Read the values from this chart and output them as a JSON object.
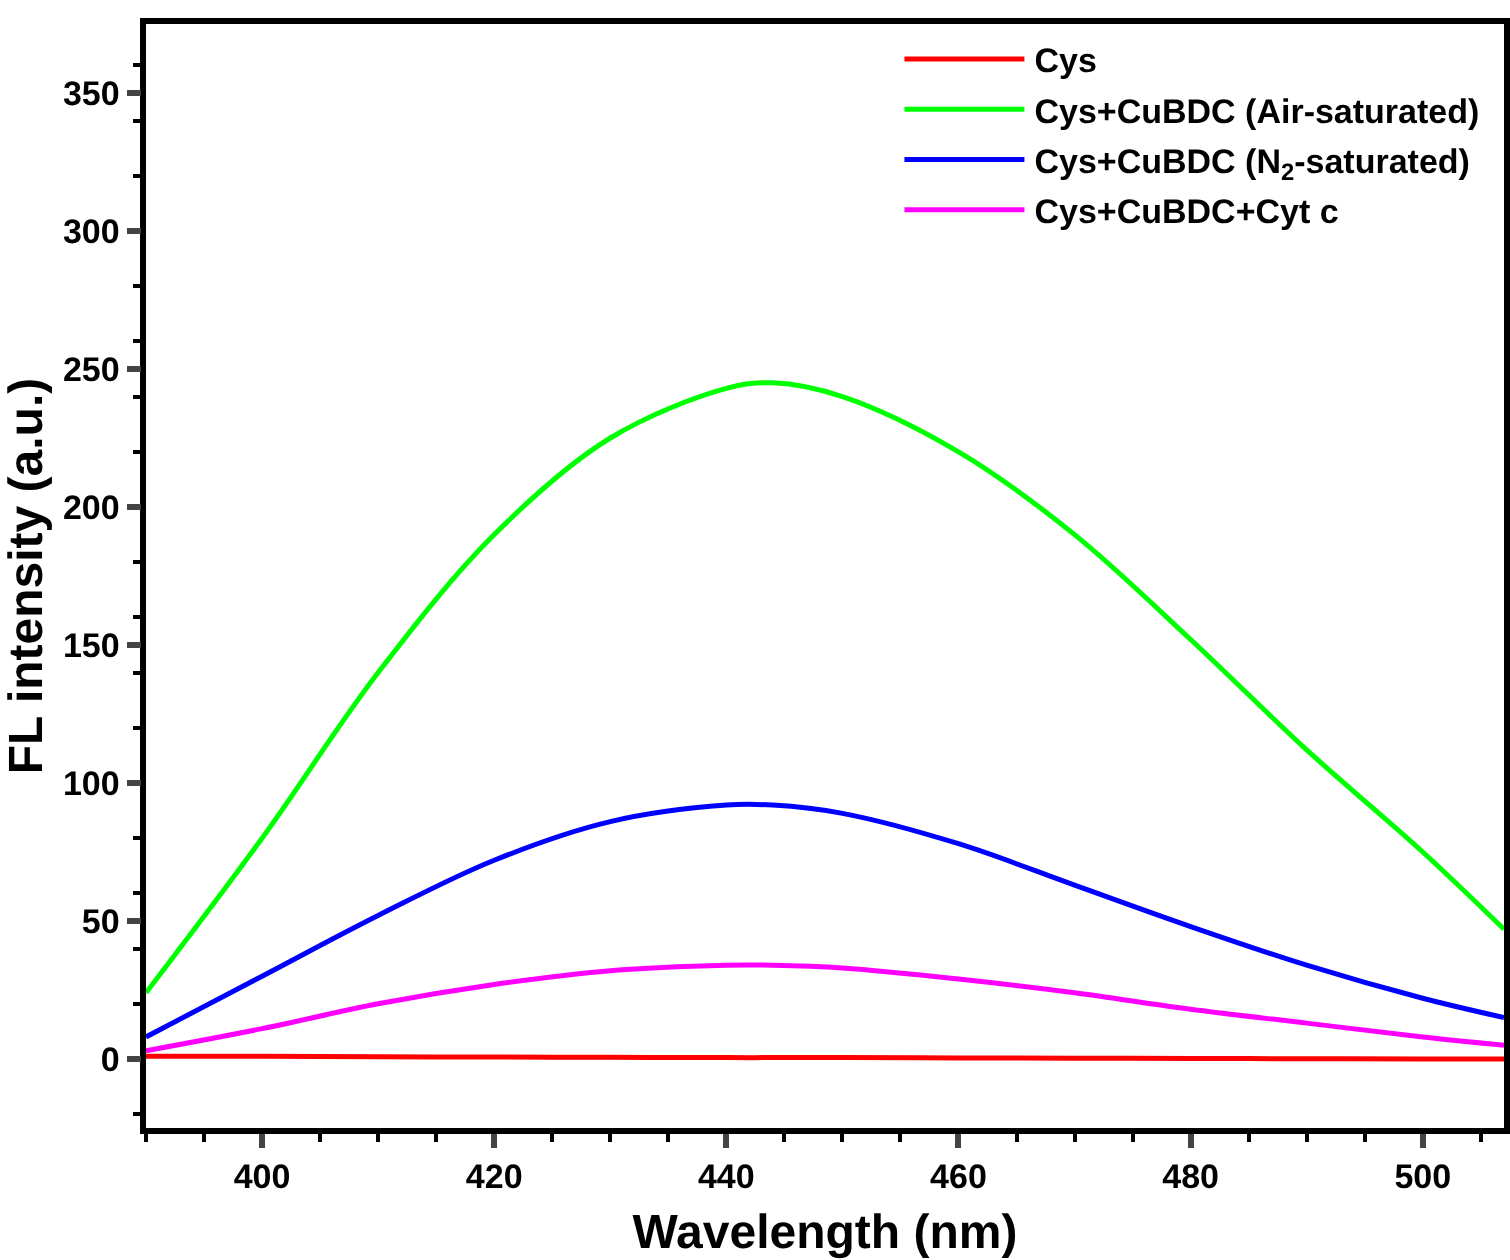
{
  "chart_data": {
    "type": "line",
    "xlabel": "Wavelength (nm)",
    "ylabel": "FL intensity (a.u.)",
    "xlim": [
      390,
      507
    ],
    "xticks": [
      400,
      420,
      440,
      460,
      480,
      500
    ],
    "ylim": [
      -25,
      375
    ],
    "yticks": [
      0,
      50,
      100,
      150,
      200,
      250,
      300,
      350
    ],
    "legend": "top right",
    "marker": "none",
    "line_style": "solid",
    "x": [
      390,
      400,
      410,
      420,
      430,
      440,
      444,
      450,
      460,
      470,
      480,
      490,
      500,
      507
    ],
    "series": [
      {
        "name": "Cys",
        "color": "#ff0000",
        "values": [
          1,
          1,
          0.8,
          0.7,
          0.6,
          0.5,
          0.5,
          0.5,
          0.4,
          0.3,
          0.2,
          0.1,
          0,
          0
        ]
      },
      {
        "name": "Cys+CuBDC (Air-saturated)",
        "color": "#00ff00",
        "values": [
          24,
          80,
          140,
          190,
          225,
          243,
          245,
          240,
          220,
          190,
          152,
          112,
          75,
          47
        ]
      },
      {
        "name": "Cys+CuBDC (N$_{2}$-saturated)",
        "color": "#0000ff",
        "values": [
          8,
          30,
          52,
          72,
          86,
          92,
          92,
          89,
          78,
          63,
          48,
          34,
          22,
          15
        ]
      },
      {
        "name": "Cys+CuBDC+Cyt c",
        "color": "#ff00ff",
        "values": [
          3,
          11,
          20,
          27,
          32,
          34,
          34,
          33,
          29,
          24,
          18,
          13,
          8,
          5
        ]
      }
    ]
  }
}
